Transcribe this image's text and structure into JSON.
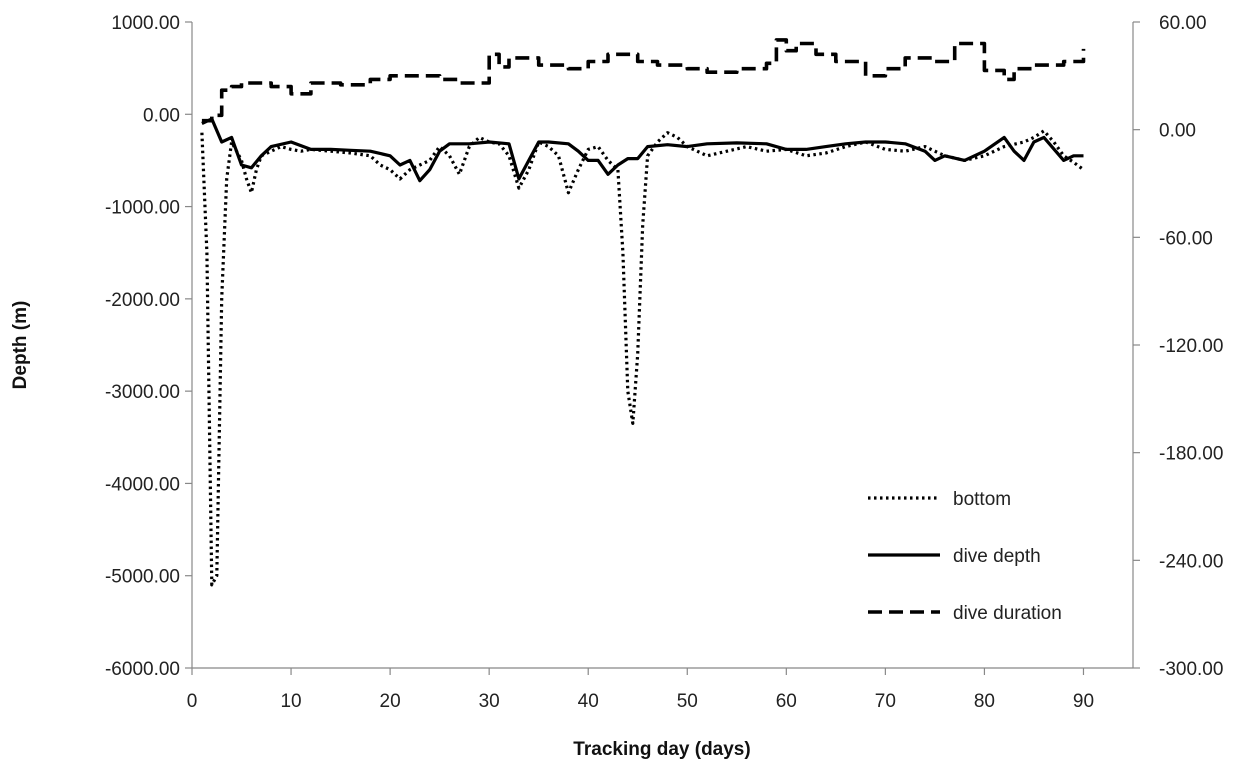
{
  "chart_data": {
    "type": "line",
    "title": "",
    "xlabel": "Tracking day (days)",
    "ylabel": "Depth (m)",
    "y2label": "",
    "xlim": [
      0,
      95
    ],
    "xticks": [
      0,
      10,
      20,
      30,
      40,
      50,
      60,
      70,
      80,
      90
    ],
    "ylim": [
      -6000,
      1000
    ],
    "yticks": [
      "1000.00",
      "0.00",
      "-1000.00",
      "-2000.00",
      "-3000.00",
      "-4000.00",
      "-5000.00",
      "-6000.00"
    ],
    "y2lim": [
      -300,
      60
    ],
    "y2ticks": [
      "60.00",
      "0.00",
      "-60.00",
      "-120.00",
      "-180.00",
      "-240.00",
      "-300.00"
    ],
    "grid": false,
    "legend_position": "bottom-right",
    "series": [
      {
        "name": "bottom",
        "axis": "left",
        "style": "dotted",
        "color": "#000000",
        "x": [
          1,
          1.5,
          2,
          2.5,
          3,
          3.5,
          4,
          4.5,
          5,
          5.5,
          6,
          6.5,
          7,
          8,
          9,
          10,
          11,
          12,
          14,
          16,
          18,
          19,
          20,
          21,
          22,
          23,
          24,
          25,
          26,
          27,
          28,
          29,
          30,
          31,
          32,
          33,
          34,
          35,
          36,
          37,
          38,
          39,
          40,
          41,
          42,
          43,
          43.5,
          44,
          44.5,
          45,
          45.5,
          46,
          47,
          48,
          49,
          50,
          52,
          54,
          56,
          58,
          60,
          62,
          64,
          66,
          68,
          70,
          72,
          74,
          76,
          78,
          80,
          82,
          84,
          85,
          86,
          87,
          88,
          89,
          90
        ],
        "y": [
          -200,
          -1500,
          -5100,
          -5000,
          -2000,
          -700,
          -300,
          -400,
          -500,
          -700,
          -850,
          -600,
          -450,
          -400,
          -350,
          -380,
          -400,
          -380,
          -400,
          -420,
          -450,
          -550,
          -600,
          -700,
          -600,
          -550,
          -500,
          -350,
          -450,
          -650,
          -350,
          -250,
          -300,
          -320,
          -450,
          -800,
          -600,
          -300,
          -350,
          -450,
          -850,
          -600,
          -380,
          -350,
          -500,
          -600,
          -1500,
          -3000,
          -3350,
          -2600,
          -1200,
          -450,
          -300,
          -200,
          -250,
          -350,
          -450,
          -400,
          -350,
          -400,
          -380,
          -450,
          -420,
          -350,
          -300,
          -380,
          -400,
          -350,
          -450,
          -500,
          -450,
          -350,
          -300,
          -250,
          -180,
          -300,
          -450,
          -520,
          -600
        ]
      },
      {
        "name": "dive depth",
        "axis": "left",
        "style": "solid",
        "color": "#000000",
        "x": [
          1,
          2,
          3,
          4,
          5,
          6,
          7,
          8,
          10,
          12,
          14,
          16,
          18,
          20,
          21,
          22,
          23,
          24,
          25,
          26,
          28,
          30,
          32,
          33,
          34,
          35,
          36,
          38,
          39,
          40,
          41,
          42,
          43,
          44,
          45,
          46,
          48,
          50,
          52,
          55,
          58,
          60,
          62,
          64,
          66,
          68,
          70,
          72,
          74,
          75,
          76,
          78,
          80,
          82,
          83,
          84,
          85,
          86,
          88,
          89,
          90
        ],
        "y": [
          -100,
          -50,
          -300,
          -250,
          -550,
          -580,
          -450,
          -350,
          -300,
          -380,
          -380,
          -390,
          -400,
          -450,
          -550,
          -500,
          -720,
          -600,
          -400,
          -320,
          -320,
          -300,
          -320,
          -700,
          -500,
          -300,
          -300,
          -320,
          -400,
          -500,
          -500,
          -650,
          -550,
          -480,
          -480,
          -350,
          -330,
          -350,
          -320,
          -310,
          -320,
          -380,
          -380,
          -350,
          -320,
          -300,
          -300,
          -320,
          -400,
          -500,
          -450,
          -500,
          -400,
          -250,
          -400,
          -500,
          -300,
          -250,
          -500,
          -450,
          -450
        ]
      },
      {
        "name": "dive duration",
        "axis": "right",
        "style": "dashed",
        "color": "#000000",
        "x": [
          1,
          2,
          3,
          4,
          5,
          6,
          8,
          10,
          12,
          15,
          18,
          20,
          22,
          25,
          27,
          29,
          30,
          31,
          32,
          35,
          38,
          40,
          42,
          45,
          47,
          50,
          52,
          55,
          58,
          59,
          60,
          61,
          63,
          65,
          68,
          70,
          72,
          75,
          77,
          80,
          82,
          83,
          85,
          88,
          90
        ],
        "y": [
          5,
          8,
          22,
          24,
          26,
          26,
          24,
          20,
          26,
          25,
          28,
          30,
          30,
          28,
          26,
          26,
          42,
          35,
          40,
          36,
          34,
          38,
          42,
          38,
          36,
          34,
          32,
          34,
          37,
          50,
          44,
          48,
          42,
          38,
          30,
          34,
          40,
          38,
          48,
          33,
          28,
          34,
          36,
          38,
          45
        ]
      }
    ]
  }
}
